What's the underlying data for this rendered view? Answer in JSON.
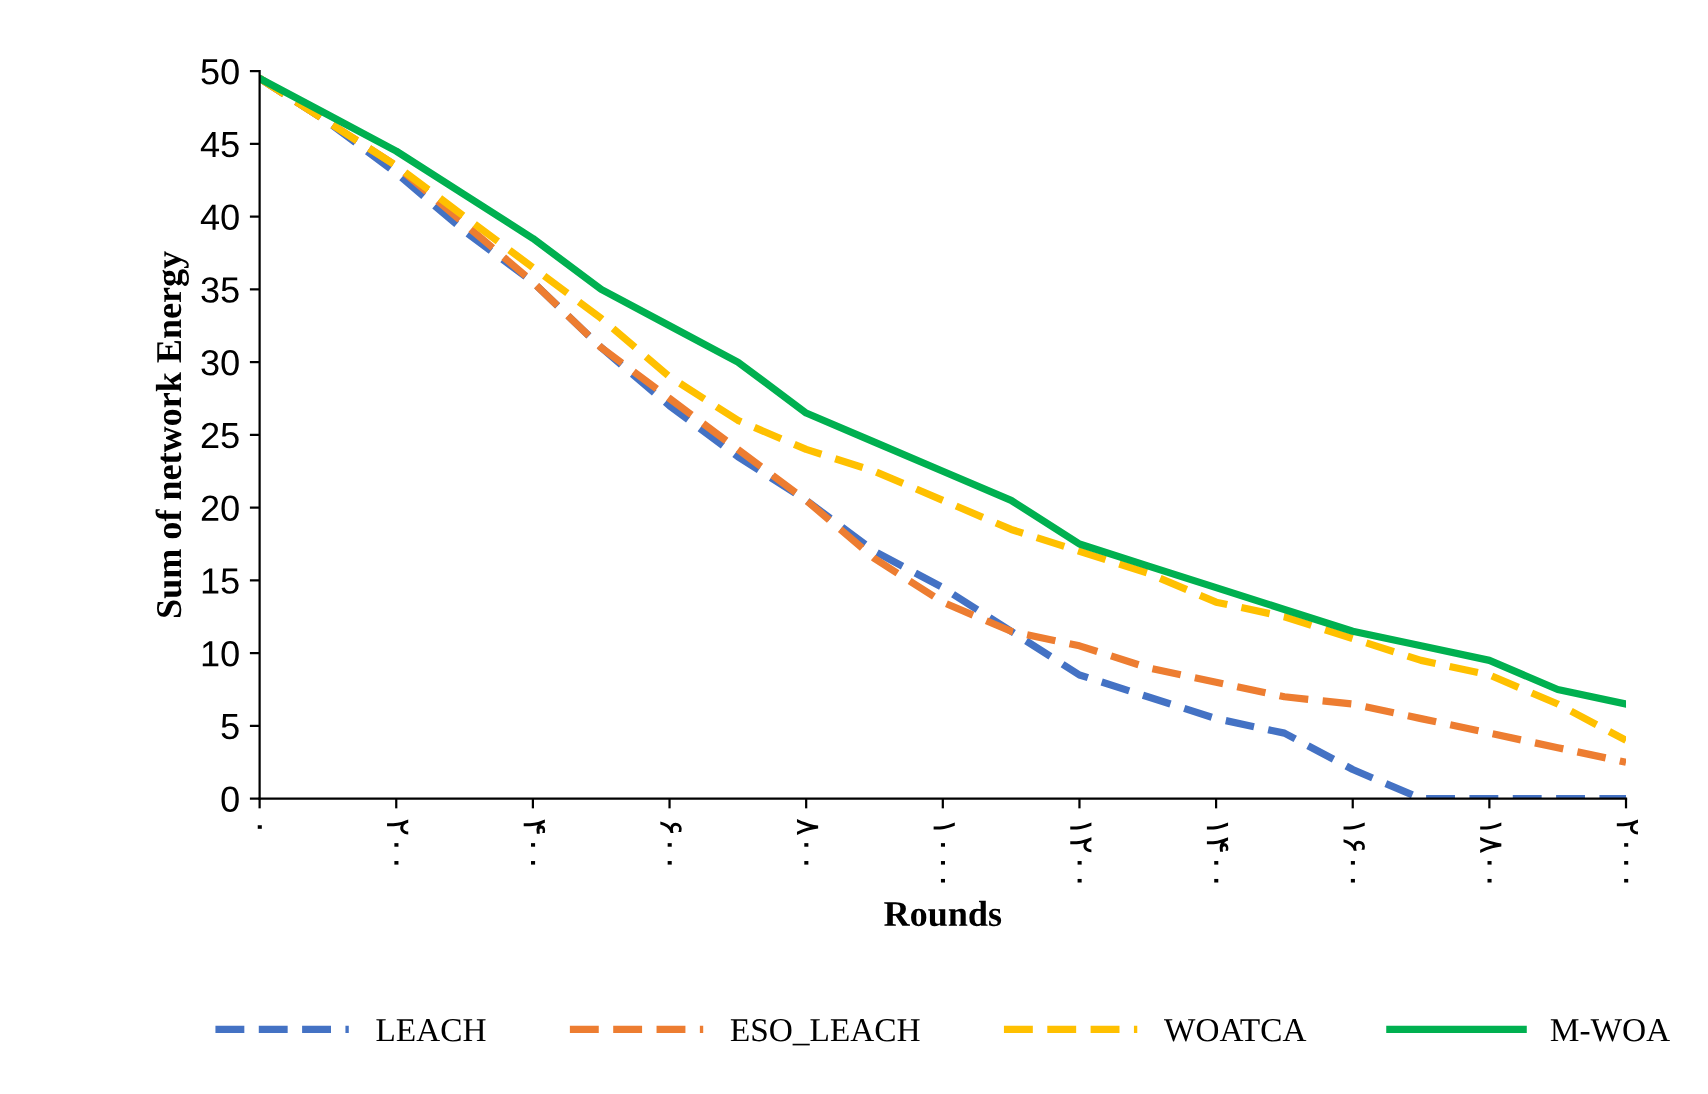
{
  "chart_data": {
    "type": "line",
    "xlabel": "Rounds",
    "ylabel": "Sum of network Energy",
    "x": [
      0,
      100,
      200,
      300,
      400,
      500,
      600,
      700,
      800,
      900,
      1000,
      1100,
      1200,
      1300,
      1400,
      1500,
      1600,
      1700,
      1800,
      1900,
      2000
    ],
    "series": [
      {
        "name": "LEACH",
        "color": "#4472c4",
        "line_style": "dashed",
        "values": [
          49.5,
          46.5,
          43,
          39,
          35.5,
          31,
          27,
          23.5,
          20.5,
          17,
          14.5,
          11.5,
          8.5,
          7,
          5.5,
          4.5,
          2,
          0,
          0,
          0,
          0
        ]
      },
      {
        "name": "ESO_LEACH",
        "color": "#ed7d31",
        "line_style": "dashed",
        "values": [
          49.5,
          46.5,
          43.5,
          39.5,
          35.5,
          31,
          27.5,
          24,
          20.5,
          16.5,
          13.5,
          11.5,
          10.5,
          9,
          8,
          7,
          6.5,
          5.5,
          4.5,
          3.5,
          2.5
        ]
      },
      {
        "name": "WOATCA",
        "color": "#ffc000",
        "line_style": "dashed",
        "values": [
          49.5,
          46.5,
          43.5,
          40,
          36.5,
          33,
          29,
          26,
          24,
          22.5,
          20.5,
          18.5,
          17,
          15.5,
          13.5,
          12.5,
          11,
          9.5,
          8.5,
          6.5,
          4
        ]
      },
      {
        "name": "M-WOA",
        "color": "#00b050",
        "line_style": "solid",
        "values": [
          49.5,
          47,
          44.5,
          41.5,
          38.5,
          35,
          32.5,
          30,
          26.5,
          24.5,
          22.5,
          20.5,
          17.5,
          16,
          14.5,
          13,
          11.5,
          10.5,
          9.5,
          7.5,
          6.5
        ]
      }
    ],
    "xlim": [
      0,
      2000
    ],
    "xticks": [
      {
        "value": 0,
        "label": "۰"
      },
      {
        "value": 200,
        "label": "۲۰۰"
      },
      {
        "value": 400,
        "label": "۴۰۰"
      },
      {
        "value": 600,
        "label": "۶۰۰"
      },
      {
        "value": 800,
        "label": "۸۰۰"
      },
      {
        "value": 1000,
        "label": "۱۰۰۰"
      },
      {
        "value": 1200,
        "label": "۱۲۰۰"
      },
      {
        "value": 1400,
        "label": "۱۴۰۰"
      },
      {
        "value": 1600,
        "label": "۱۶۰۰"
      },
      {
        "value": 1800,
        "label": "۱۸۰۰"
      },
      {
        "value": 2000,
        "label": "۲۰۰۰"
      }
    ],
    "ylim": [
      0,
      50
    ],
    "yticks": [
      0,
      5,
      10,
      15,
      20,
      25,
      30,
      35,
      40,
      45,
      50
    ],
    "grid": false,
    "legend": "bottom"
  }
}
